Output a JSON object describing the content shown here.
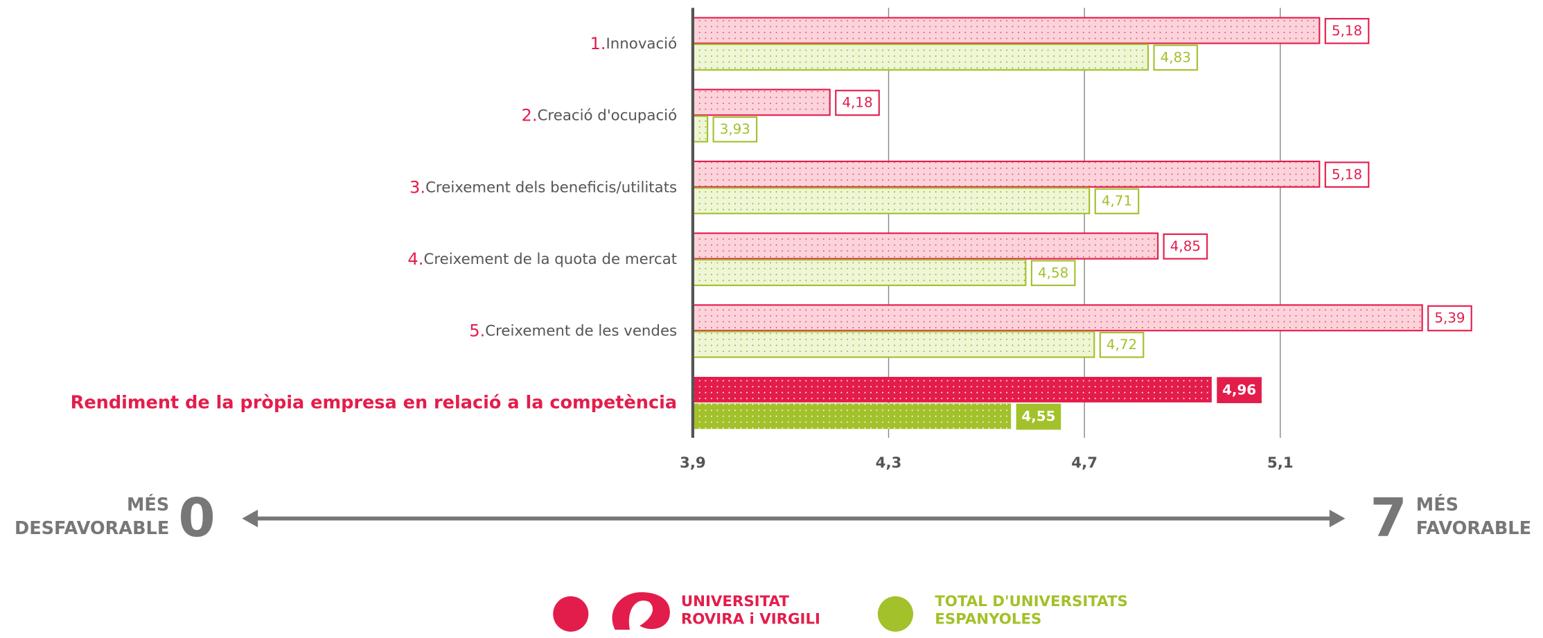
{
  "chart_data": {
    "type": "hbar",
    "category_numbers": [
      "1.",
      "2.",
      "3.",
      "4.",
      "5.",
      null
    ],
    "categories": [
      "Innovació",
      "Creació d'ocupació",
      "Creixement dels beneficis/utilitats",
      "Creixement de la quota de mercat",
      "Creixement de les vendes",
      "Rendiment de la pròpia empresa en relació a la competència"
    ],
    "highlight_last": true,
    "series": [
      {
        "name": "UNIVERSITAT ROVIRA i VIRGILI",
        "color": "#e31d4b",
        "values": [
          5.18,
          4.18,
          5.18,
          4.85,
          5.39,
          4.96
        ],
        "value_labels": [
          "5,18",
          "4,18",
          "5,18",
          "4,85",
          "5,39",
          "4,96"
        ]
      },
      {
        "name": "TOTAL D'UNIVERSITATS ESPANYOLES",
        "color": "#a2c12a",
        "values": [
          4.83,
          3.93,
          4.71,
          4.58,
          4.72,
          4.55
        ],
        "value_labels": [
          "4,83",
          "3,93",
          "4,71",
          "4,58",
          "4,72",
          "4,55"
        ]
      }
    ],
    "xlim": [
      3.9,
      5.5
    ],
    "xticks": [
      {
        "value": 3.9,
        "label": "3,9"
      },
      {
        "value": 4.3,
        "label": "4,3"
      },
      {
        "value": 4.7,
        "label": "4,7"
      },
      {
        "value": 5.1,
        "label": "5,1"
      }
    ],
    "grid": true,
    "scale": {
      "left_words": [
        "MÉS",
        "DESFAVORABLE"
      ],
      "left_value": "0",
      "right_value": "7",
      "right_words": [
        "MÉS",
        "FAVORABLE"
      ]
    }
  }
}
